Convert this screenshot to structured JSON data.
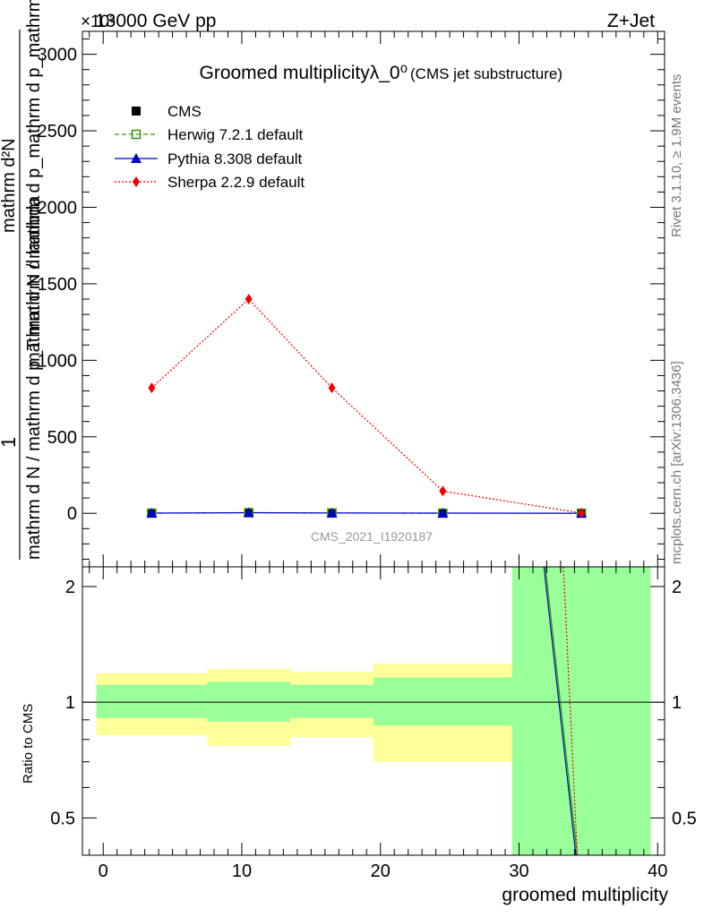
{
  "header": {
    "energy_label": "13000 GeV pp",
    "process_label": "Z+Jet",
    "exponent_label": "×10³"
  },
  "side": {
    "rivet_label": "Rivet 3.1.10, ≥ 1.9M events",
    "mcplots_label": "mcplots.cern.ch [arXiv:1306.3436]"
  },
  "chart_data": [
    {
      "type": "scatter",
      "title": "Groomed multiplicityλ_0⁰",
      "subtitle": "(CMS jet substructure)",
      "watermark": "CMS_2021_I1920187",
      "ylabel_numerator": "1",
      "ylabel_denominator_line1": "mathrm d N / mathrm d p_T mathrm d lambda",
      "ylabel_denominator_line2": "mathrm d N / mathrm d p_mathrm d p_mathrm d lambda",
      "ylabel_top": "mathrm d²N",
      "yscale_note": "×10³",
      "ylim": [
        -350,
        3150
      ],
      "xlim": [
        -1.5,
        40.5
      ],
      "yticks": [
        0,
        500,
        1000,
        1500,
        2000,
        2500,
        3000
      ],
      "legend_placement": "top-left",
      "x": [
        3.5,
        10.5,
        16.5,
        24.5,
        34.5
      ],
      "series": [
        {
          "name": "CMS",
          "color": "#000000",
          "marker": "square",
          "values": [
            1,
            4,
            2,
            1,
            0.5
          ]
        },
        {
          "name": "Herwig 7.2.1 default",
          "color": "#339900",
          "marker": "open-square",
          "line": "dashed",
          "values": [
            1,
            4,
            2,
            1,
            0.5
          ]
        },
        {
          "name": "Pythia 8.308 default",
          "color": "#0000cc",
          "marker": "triangle",
          "line": "solid",
          "values": [
            1,
            4,
            2,
            1,
            0.5
          ]
        },
        {
          "name": "Sherpa 2.2.9 default",
          "color": "#ee0000",
          "marker": "diamond",
          "line": "dotted",
          "values": [
            820,
            1400,
            820,
            145,
            2
          ]
        }
      ]
    },
    {
      "type": "area",
      "ylabel": "Ratio to CMS",
      "xlabel": "groomed multiplicity",
      "scale": "log",
      "ylim": [
        0.4,
        2.25
      ],
      "xlim": [
        -1.5,
        40.5
      ],
      "xticks": [
        0,
        10,
        20,
        30,
        40
      ],
      "yticks": [
        0.5,
        1,
        2
      ],
      "bins": [
        {
          "x_low": -0.5,
          "x_high": 7.5,
          "stat_low": 0.91,
          "stat_high": 1.11,
          "tot_low": 0.82,
          "tot_high": 1.19
        },
        {
          "x_low": 7.5,
          "x_high": 13.5,
          "stat_low": 0.89,
          "stat_high": 1.13,
          "tot_low": 0.77,
          "tot_high": 1.22
        },
        {
          "x_low": 13.5,
          "x_high": 19.5,
          "stat_low": 0.91,
          "stat_high": 1.11,
          "tot_low": 0.81,
          "tot_high": 1.2
        },
        {
          "x_low": 19.5,
          "x_high": 29.5,
          "stat_low": 0.87,
          "stat_high": 1.16,
          "tot_low": 0.7,
          "tot_high": 1.26
        },
        {
          "x_low": 29.5,
          "x_high": 39.5,
          "stat_low": 0.4,
          "stat_high": 2.25,
          "tot_low": 0.4,
          "tot_high": 2.25
        }
      ],
      "reference_line": 1,
      "series": [
        {
          "name": "Pythia 8.308 default",
          "color": "#0000cc",
          "points": [
            [
              31.8,
              2.25
            ],
            [
              34.1,
              0.4
            ]
          ]
        },
        {
          "name": "Herwig 7.2.1 default",
          "color": "#339900",
          "points": [
            [
              31.9,
              2.25
            ],
            [
              34.2,
              0.4
            ]
          ]
        },
        {
          "name": "Sherpa 2.2.9 default",
          "color": "#ee0000",
          "points": [
            [
              33.2,
              2.25
            ],
            [
              34.2,
              0.4
            ]
          ]
        }
      ],
      "colors": {
        "stat_band": "#99ff99",
        "total_band": "#ffff99"
      }
    }
  ]
}
